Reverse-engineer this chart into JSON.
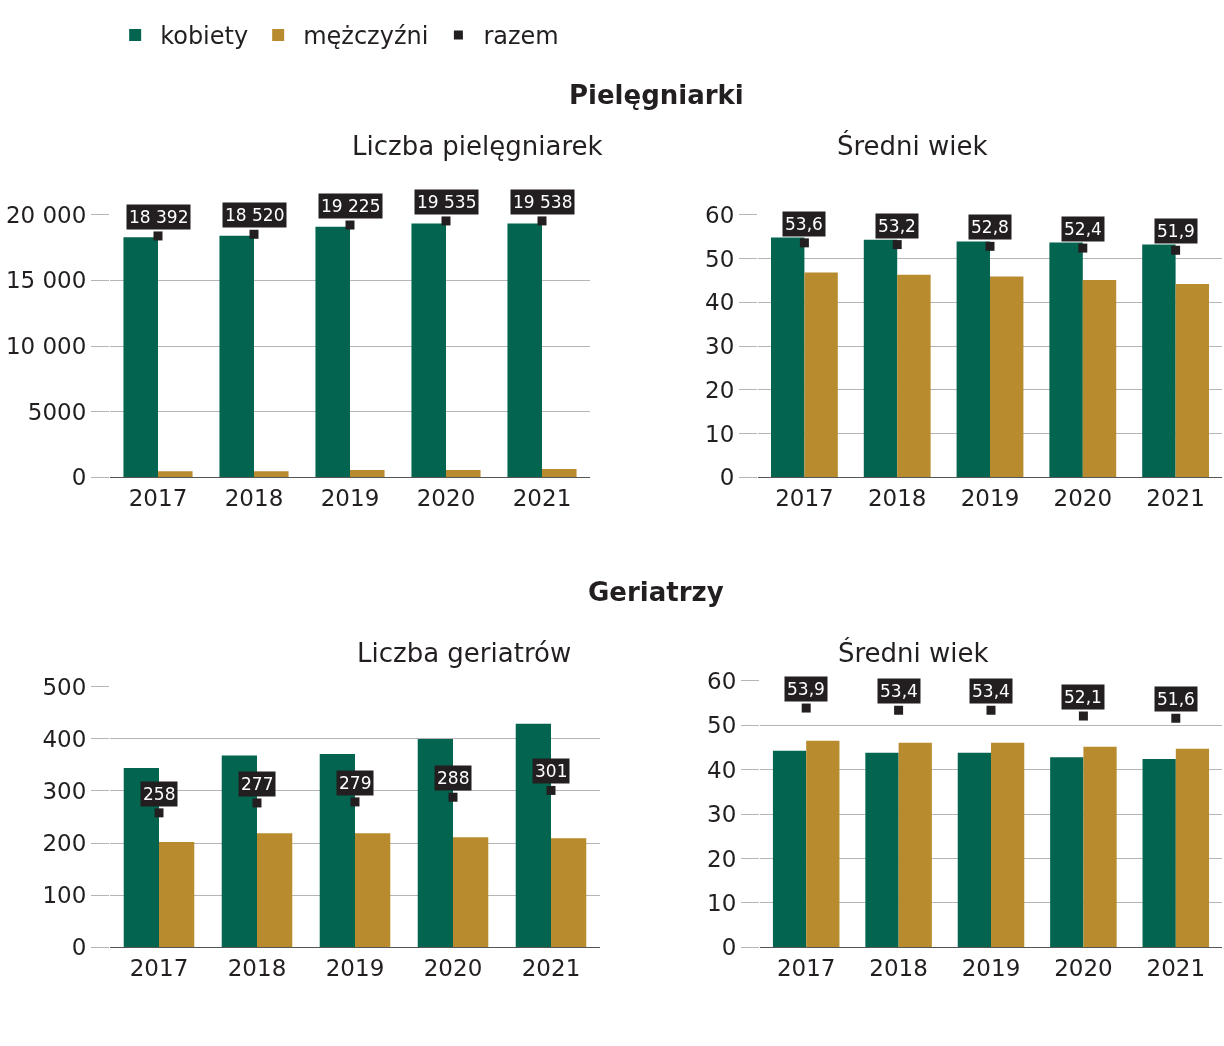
{
  "chart_data": [
    {
      "type": "bar",
      "title": "Liczba pielęgniarek",
      "annotations": [
        "Pielęgniarki"
      ],
      "categories": [
        "2017",
        "2018",
        "2019",
        "2020",
        "2021"
      ],
      "series": [
        {
          "name": "kobiety",
          "color": "#03644f",
          "values": [
            18300,
            18400,
            19100,
            19350,
            19350
          ]
        },
        {
          "name": "mężczyźni",
          "color": "#b88b2e",
          "values": [
            450,
            450,
            540,
            540,
            620
          ]
        },
        {
          "name": "razem",
          "type": "scatter",
          "color": "#231f20",
          "values": [
            18392,
            18520,
            19225,
            19535,
            19538
          ],
          "value_labels": [
            "18 392",
            "18 520",
            "19 225",
            "19 535",
            "19 538"
          ]
        }
      ],
      "ylim": [
        0,
        20000
      ],
      "yticks": [
        0,
        5000,
        {
          "value": 10000,
          "label": "10 000"
        },
        {
          "value": 15000,
          "label": "15 000"
        },
        {
          "value": 20000,
          "label": "20 000"
        }
      ],
      "grid": "y",
      "legend": "top left",
      "marker": "square"
    },
    {
      "type": "bar",
      "title": "Średni wiek",
      "categories": [
        "2017",
        "2018",
        "2019",
        "2020",
        "2021"
      ],
      "series": [
        {
          "color": "#03644f",
          "values": [
            54.8,
            54.3,
            53.9,
            53.7,
            53.2
          ]
        },
        {
          "color": "#b88b2e",
          "values": [
            46.8,
            46.3,
            45.9,
            45.1,
            44.2
          ]
        },
        {
          "type": "scatter",
          "color": "#231f20",
          "values": [
            53.6,
            53.2,
            52.8,
            52.4,
            51.9
          ],
          "value_labels": [
            "53,6",
            "53,2",
            "52,8",
            "52,4",
            "51,9"
          ]
        }
      ],
      "ylim": [
        0,
        60
      ],
      "yticks": [
        0,
        10,
        20,
        30,
        40,
        50,
        60
      ],
      "grid": "y",
      "marker": "square"
    },
    {
      "type": "bar",
      "title": "Liczba geriatrów",
      "annotations": [
        "Geriatrzy"
      ],
      "categories": [
        "2017",
        "2018",
        "2019",
        "2020",
        "2021"
      ],
      "series": [
        {
          "color": "#03644f",
          "values": [
            344,
            368,
            371,
            400,
            429
          ]
        },
        {
          "color": "#b88b2e",
          "values": [
            202,
            219,
            219,
            211,
            209
          ]
        },
        {
          "type": "scatter",
          "color": "#231f20",
          "values": [
            258,
            277,
            279,
            288,
            301
          ],
          "data_labels": true
        }
      ],
      "ylim": [
        0,
        500
      ],
      "yticks": [
        0,
        100,
        200,
        300,
        400,
        500
      ],
      "grid": "y",
      "marker": "square"
    },
    {
      "type": "bar",
      "title": "Średni wiek",
      "categories": [
        "2017",
        "2018",
        "2019",
        "2020",
        "2021"
      ],
      "series": [
        {
          "color": "#03644f",
          "values": [
            44.3,
            43.8,
            43.8,
            42.8,
            42.4
          ]
        },
        {
          "color": "#b88b2e",
          "values": [
            46.5,
            46.1,
            46.1,
            45.2,
            44.7
          ]
        },
        {
          "type": "scatter",
          "color": "#231f20",
          "values": [
            53.9,
            53.4,
            53.4,
            52.1,
            51.6
          ],
          "value_labels": [
            "53,9",
            "53,4",
            "53,4",
            "52,1",
            "51,6"
          ]
        }
      ],
      "ylim": [
        0,
        60
      ],
      "yticks": [
        0,
        10,
        20,
        30,
        40,
        50,
        60
      ],
      "grid": "y",
      "marker": "square"
    }
  ]
}
